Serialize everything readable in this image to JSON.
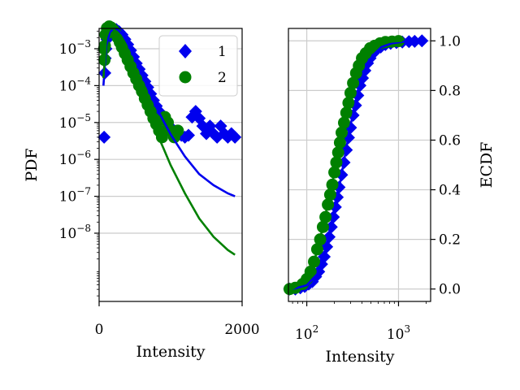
{
  "chart_data": [
    {
      "type": "scatter",
      "panel": "left",
      "xlabel": "Intensity",
      "ylabel": "PDF",
      "xlim": [
        0,
        2000
      ],
      "ylim_log10": [
        -9.85,
        -2.45
      ],
      "yscale": "log",
      "grid": "horizontal",
      "legend_position": "top-right",
      "x_ticks": [
        {
          "value": 0,
          "label": "0"
        },
        {
          "value": 2000,
          "label": "2000"
        }
      ],
      "y_ticks": [
        {
          "exp": -3,
          "label": "10",
          "sup": "−3"
        },
        {
          "exp": -4,
          "label": "10",
          "sup": "−4"
        },
        {
          "exp": -5,
          "label": "10",
          "sup": "−5"
        },
        {
          "exp": -6,
          "label": "10",
          "sup": "−6"
        },
        {
          "exp": -7,
          "label": "10",
          "sup": "−7"
        },
        {
          "exp": -8,
          "label": "10",
          "sup": "−8"
        }
      ],
      "series": [
        {
          "name": "1",
          "color": "#0000ee",
          "marker": "diamond",
          "points": [
            [
              70,
              4e-06
            ],
            [
              80,
              0.00022
            ],
            [
              85,
              0.00055
            ],
            [
              95,
              0.001
            ],
            [
              110,
              0.0018
            ],
            [
              130,
              0.0026
            ],
            [
              160,
              0.0033
            ],
            [
              200,
              0.0036
            ],
            [
              240,
              0.0033
            ],
            [
              280,
              0.0029
            ],
            [
              320,
              0.0024
            ],
            [
              360,
              0.0018
            ],
            [
              400,
              0.0013
            ],
            [
              440,
              0.0009
            ],
            [
              480,
              0.0006
            ],
            [
              520,
              0.0004
            ],
            [
              560,
              0.00028
            ],
            [
              600,
              0.00019
            ],
            [
              640,
              0.00013
            ],
            [
              680,
              9e-05
            ],
            [
              720,
              6e-05
            ],
            [
              760,
              4e-05
            ],
            [
              800,
              2.8e-05
            ],
            [
              840,
              2e-05
            ],
            [
              880,
              1.5e-05
            ],
            [
              920,
              1.1e-05
            ],
            [
              960,
              9e-06
            ],
            [
              1000,
              7e-06
            ],
            [
              1050,
              6e-06
            ],
            [
              1100,
              5e-06
            ],
            [
              1150,
              4.5e-06
            ],
            [
              1200,
              4e-06
            ],
            [
              1250,
              4.5e-06
            ],
            [
              1300,
              1.4e-05
            ],
            [
              1350,
              2e-05
            ],
            [
              1400,
              1.3e-05
            ],
            [
              1450,
              8e-06
            ],
            [
              1500,
              5e-06
            ],
            [
              1550,
              8e-06
            ],
            [
              1600,
              5e-06
            ],
            [
              1650,
              4e-06
            ],
            [
              1700,
              8e-06
            ],
            [
              1750,
              5e-06
            ],
            [
              1800,
              4e-06
            ],
            [
              1850,
              5e-06
            ],
            [
              1900,
              4e-06
            ]
          ],
          "fit": [
            [
              60,
              0.0001
            ],
            [
              100,
              0.0012
            ],
            [
              150,
              0.0028
            ],
            [
              200,
              0.0035
            ],
            [
              260,
              0.0033
            ],
            [
              330,
              0.0024
            ],
            [
              400,
              0.0014
            ],
            [
              500,
              0.00055
            ],
            [
              600,
              0.0002
            ],
            [
              700,
              7e-05
            ],
            [
              800,
              2.6e-05
            ],
            [
              900,
              1.1e-05
            ],
            [
              1000,
              4.8e-06
            ],
            [
              1200,
              1.2e-06
            ],
            [
              1400,
              4e-07
            ],
            [
              1600,
              2e-07
            ],
            [
              1800,
              1.2e-07
            ],
            [
              1900,
              1e-07
            ]
          ]
        },
        {
          "name": "2",
          "color": "#008000",
          "marker": "circle",
          "points": [
            [
              70,
              0.001
            ],
            [
              75,
              0.0005
            ],
            [
              80,
              0.0012
            ],
            [
              90,
              0.0024
            ],
            [
              110,
              0.0036
            ],
            [
              140,
              0.004
            ],
            [
              170,
              0.0037
            ],
            [
              200,
              0.0032
            ],
            [
              230,
              0.0026
            ],
            [
              260,
              0.002
            ],
            [
              290,
              0.0015
            ],
            [
              320,
              0.0011
            ],
            [
              360,
              0.00075
            ],
            [
              400,
              0.0005
            ],
            [
              440,
              0.00033
            ],
            [
              480,
              0.00022
            ],
            [
              520,
              0.00015
            ],
            [
              560,
              0.0001
            ],
            [
              600,
              7e-05
            ],
            [
              640,
              4.5e-05
            ],
            [
              680,
              3e-05
            ],
            [
              720,
              2e-05
            ],
            [
              760,
              1.3e-05
            ],
            [
              800,
              9e-06
            ],
            [
              840,
              6e-06
            ],
            [
              880,
              4e-06
            ],
            [
              920,
              1.4e-05
            ],
            [
              960,
              1e-05
            ],
            [
              1000,
              6e-06
            ],
            [
              1050,
              4e-06
            ],
            [
              1100,
              6e-06
            ]
          ],
          "fit": [
            [
              60,
              0.00016
            ],
            [
              100,
              0.002
            ],
            [
              150,
              0.0036
            ],
            [
              200,
              0.0035
            ],
            [
              260,
              0.0025
            ],
            [
              330,
              0.0014
            ],
            [
              400,
              0.00065
            ],
            [
              500,
              0.0002
            ],
            [
              600,
              6e-05
            ],
            [
              700,
              1.8e-05
            ],
            [
              800,
              5.5e-06
            ],
            [
              900,
              2e-06
            ],
            [
              1000,
              7e-07
            ],
            [
              1200,
              1.2e-07
            ],
            [
              1400,
              2.5e-08
            ],
            [
              1600,
              8e-09
            ],
            [
              1800,
              3.5e-09
            ],
            [
              1900,
              2.6e-09
            ]
          ]
        }
      ]
    },
    {
      "type": "scatter",
      "panel": "right",
      "xlabel": "Intensity",
      "ylabel": "ECDF",
      "xscale": "log",
      "xlim_log10": [
        1.8,
        3.35
      ],
      "ylim": [
        -0.05,
        1.05
      ],
      "grid": "both",
      "x_ticks": [
        {
          "exp": 2,
          "label": "10",
          "sup": "2"
        },
        {
          "exp": 3,
          "label": "10",
          "sup": "3"
        }
      ],
      "y_ticks": [
        {
          "value": 0.0,
          "label": "0.0"
        },
        {
          "value": 0.2,
          "label": "0.2"
        },
        {
          "value": 0.4,
          "label": "0.4"
        },
        {
          "value": 0.6,
          "label": "0.6"
        },
        {
          "value": 0.8,
          "label": "0.8"
        },
        {
          "value": 1.0,
          "label": "1.0"
        }
      ],
      "series": [
        {
          "name": "1",
          "color": "#0000ee",
          "marker": "diamond",
          "points": [
            [
              65,
              0.0
            ],
            [
              75,
              0.0
            ],
            [
              85,
              0.005
            ],
            [
              95,
              0.01
            ],
            [
              105,
              0.02
            ],
            [
              115,
              0.03
            ],
            [
              125,
              0.05
            ],
            [
              135,
              0.07
            ],
            [
              145,
              0.1
            ],
            [
              155,
              0.13
            ],
            [
              165,
              0.17
            ],
            [
              175,
              0.21
            ],
            [
              185,
              0.25
            ],
            [
              195,
              0.29
            ],
            [
              205,
              0.33
            ],
            [
              215,
              0.37
            ],
            [
              225,
              0.41
            ],
            [
              240,
              0.46
            ],
            [
              255,
              0.51
            ],
            [
              270,
              0.56
            ],
            [
              285,
              0.61
            ],
            [
              300,
              0.65
            ],
            [
              320,
              0.7
            ],
            [
              340,
              0.74
            ],
            [
              360,
              0.78
            ],
            [
              380,
              0.82
            ],
            [
              405,
              0.85
            ],
            [
              430,
              0.88
            ],
            [
              460,
              0.91
            ],
            [
              490,
              0.93
            ],
            [
              530,
              0.95
            ],
            [
              580,
              0.965
            ],
            [
              640,
              0.975
            ],
            [
              720,
              0.985
            ],
            [
              820,
              0.99
            ],
            [
              950,
              0.993
            ],
            [
              1100,
              0.995
            ],
            [
              1300,
              0.997
            ],
            [
              1500,
              0.998
            ],
            [
              1800,
              1.0
            ]
          ],
          "fit": [
            [
              70,
              0.0
            ],
            [
              100,
              0.015
            ],
            [
              130,
              0.06
            ],
            [
              160,
              0.15
            ],
            [
              200,
              0.3
            ],
            [
              250,
              0.5
            ],
            [
              300,
              0.66
            ],
            [
              360,
              0.79
            ],
            [
              430,
              0.88
            ],
            [
              520,
              0.94
            ],
            [
              650,
              0.975
            ],
            [
              850,
              0.99
            ],
            [
              1200,
              0.998
            ],
            [
              1800,
              1.0
            ]
          ]
        },
        {
          "name": "2",
          "color": "#008000",
          "marker": "circle",
          "points": [
            [
              65,
              0.0
            ],
            [
              75,
              0.005
            ],
            [
              90,
              0.02
            ],
            [
              100,
              0.04
            ],
            [
              110,
              0.07
            ],
            [
              120,
              0.11
            ],
            [
              130,
              0.16
            ],
            [
              140,
              0.2
            ],
            [
              150,
              0.25
            ],
            [
              160,
              0.29
            ],
            [
              170,
              0.34
            ],
            [
              180,
              0.38
            ],
            [
              190,
              0.42
            ],
            [
              200,
              0.47
            ],
            [
              210,
              0.51
            ],
            [
              220,
              0.55
            ],
            [
              230,
              0.59
            ],
            [
              240,
              0.63
            ],
            [
              255,
              0.67
            ],
            [
              270,
              0.71
            ],
            [
              285,
              0.75
            ],
            [
              300,
              0.79
            ],
            [
              320,
              0.83
            ],
            [
              345,
              0.87
            ],
            [
              370,
              0.9
            ],
            [
              400,
              0.93
            ],
            [
              440,
              0.95
            ],
            [
              490,
              0.97
            ],
            [
              550,
              0.98
            ],
            [
              630,
              0.99
            ],
            [
              720,
              0.995
            ],
            [
              850,
              0.997
            ],
            [
              1000,
              0.999
            ]
          ],
          "fit": [
            [
              70,
              0.0
            ],
            [
              100,
              0.04
            ],
            [
              130,
              0.15
            ],
            [
              160,
              0.3
            ],
            [
              200,
              0.47
            ],
            [
              250,
              0.66
            ],
            [
              300,
              0.79
            ],
            [
              360,
              0.88
            ],
            [
              430,
              0.94
            ],
            [
              520,
              0.97
            ],
            [
              650,
              0.99
            ],
            [
              850,
              0.997
            ],
            [
              1100,
              1.0
            ]
          ]
        }
      ]
    }
  ]
}
